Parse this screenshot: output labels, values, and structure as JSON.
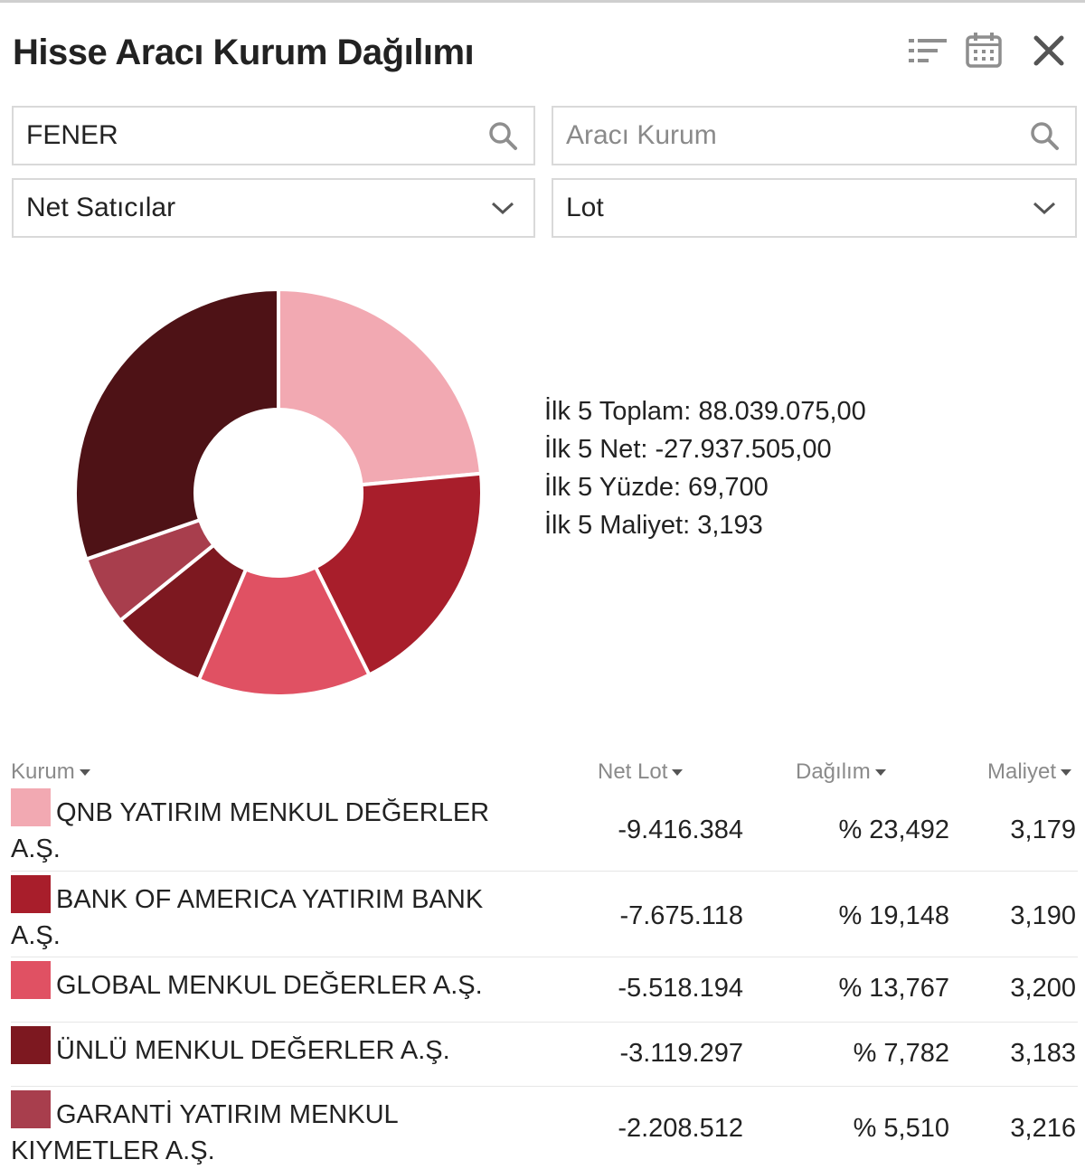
{
  "title": "Hisse Aracı Kurum Dağılımı",
  "header_icons": [
    "sort-list-icon",
    "calendar-icon",
    "close-icon"
  ],
  "search": {
    "stock_value": "FENER",
    "broker_placeholder": "Aracı Kurum"
  },
  "selects": {
    "side": "Net Satıcılar",
    "unit": "Lot"
  },
  "stats": [
    "İlk 5 Toplam: 88.039.075,00",
    "İlk 5 Net: -27.937.505,00",
    "İlk 5 Yüzde: 69,700",
    "İlk 5 Maliyet: 3,193"
  ],
  "table": {
    "headers": {
      "kurum": "Kurum",
      "net_lot": "Net Lot",
      "dagilim": "Dağılım",
      "maliyet": "Maliyet"
    },
    "rows": [
      {
        "name": "QNB YATIRIM MENKUL DEĞERLER A.Ş.",
        "net_lot": "-9.416.384",
        "dagilim": "% 23,492",
        "maliyet": "3,179",
        "color": "#f2a9b2"
      },
      {
        "name": "BANK OF AMERICA YATIRIM BANK A.Ş.",
        "net_lot": "-7.675.118",
        "dagilim": "% 19,148",
        "maliyet": "3,190",
        "color": "#a81e2b"
      },
      {
        "name": "GLOBAL MENKUL DEĞERLER A.Ş.",
        "net_lot": "-5.518.194",
        "dagilim": "% 13,767",
        "maliyet": "3,200",
        "color": "#e05163"
      },
      {
        "name": "ÜNLÜ MENKUL DEĞERLER A.Ş.",
        "net_lot": "-3.119.297",
        "dagilim": "% 7,782",
        "maliyet": "3,183",
        "color": "#7d1820"
      },
      {
        "name": "GARANTİ YATIRIM MENKUL KIYMETLER A.Ş.",
        "net_lot": "-2.208.512",
        "dagilim": "% 5,510",
        "maliyet": "3,216",
        "color": "#a83e4d"
      }
    ]
  },
  "chart_data": {
    "type": "pie",
    "categories": [
      "QNB YATIRIM MENKUL DEĞERLER A.Ş.",
      "BANK OF AMERICA YATIRIM BANK A.Ş.",
      "GLOBAL MENKUL DEĞERLER A.Ş.",
      "ÜNLÜ MENKUL DEĞERLER A.Ş.",
      "GARANTİ YATIRIM MENKUL KIYMETLER A.Ş.",
      ""
    ],
    "values": [
      23.492,
      19.148,
      13.767,
      7.782,
      5.51,
      30.301
    ],
    "colors": [
      "#f2a9b2",
      "#a81e2b",
      "#e05163",
      "#7d1820",
      "#a83e4d",
      "#4e1216"
    ]
  }
}
